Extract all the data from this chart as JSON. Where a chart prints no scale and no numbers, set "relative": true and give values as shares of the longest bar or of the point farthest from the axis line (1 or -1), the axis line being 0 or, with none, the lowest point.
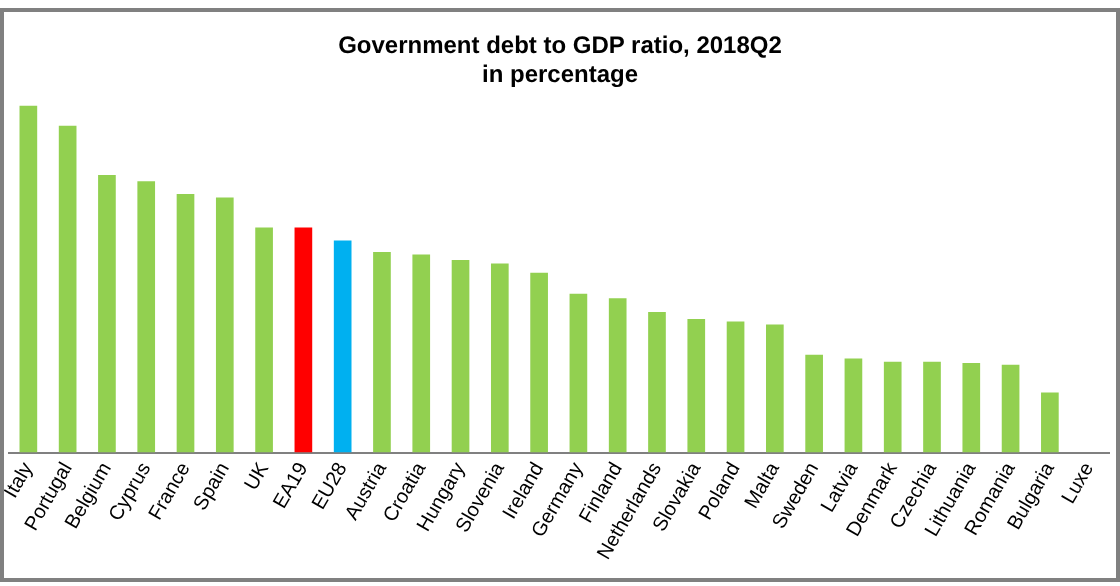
{
  "chart_data": {
    "type": "bar",
    "title": [
      "Government debt to GDP ratio, 2018Q2",
      "in percentage"
    ],
    "relative": true,
    "categories": [
      "Italy",
      "Portugal",
      "Belgium",
      "Cyprus",
      "France",
      "Spain",
      "UK",
      "EA19",
      "EU28",
      "Austria",
      "Croatia",
      "Hungary",
      "Slovenia",
      "Ireland",
      "Germany",
      "Finland",
      "Netherlands",
      "Slovakia",
      "Poland",
      "Malta",
      "Sweden",
      "Latvia",
      "Denmark",
      "Czechia",
      "Lithuania",
      "Romania",
      "Bulgaria",
      "Luxe"
    ],
    "values": [
      1,
      0.942,
      0.8,
      0.782,
      0.745,
      0.735,
      0.649,
      0.649,
      0.611,
      0.578,
      0.571,
      0.555,
      0.545,
      0.518,
      0.458,
      0.445,
      0.405,
      0.385,
      0.378,
      0.369,
      0.282,
      0.271,
      0.262,
      0.262,
      0.258,
      0.253,
      0.173,
      null
    ],
    "colors": [
      "#92d050",
      "#92d050",
      "#92d050",
      "#92d050",
      "#92d050",
      "#92d050",
      "#92d050",
      "#ff0000",
      "#00b0f0",
      "#92d050",
      "#92d050",
      "#92d050",
      "#92d050",
      "#92d050",
      "#92d050",
      "#92d050",
      "#92d050",
      "#92d050",
      "#92d050",
      "#92d050",
      "#92d050",
      "#92d050",
      "#92d050",
      "#92d050",
      "#92d050",
      "#92d050",
      "#92d050",
      "#92d050"
    ],
    "grid": false,
    "legend": false
  }
}
